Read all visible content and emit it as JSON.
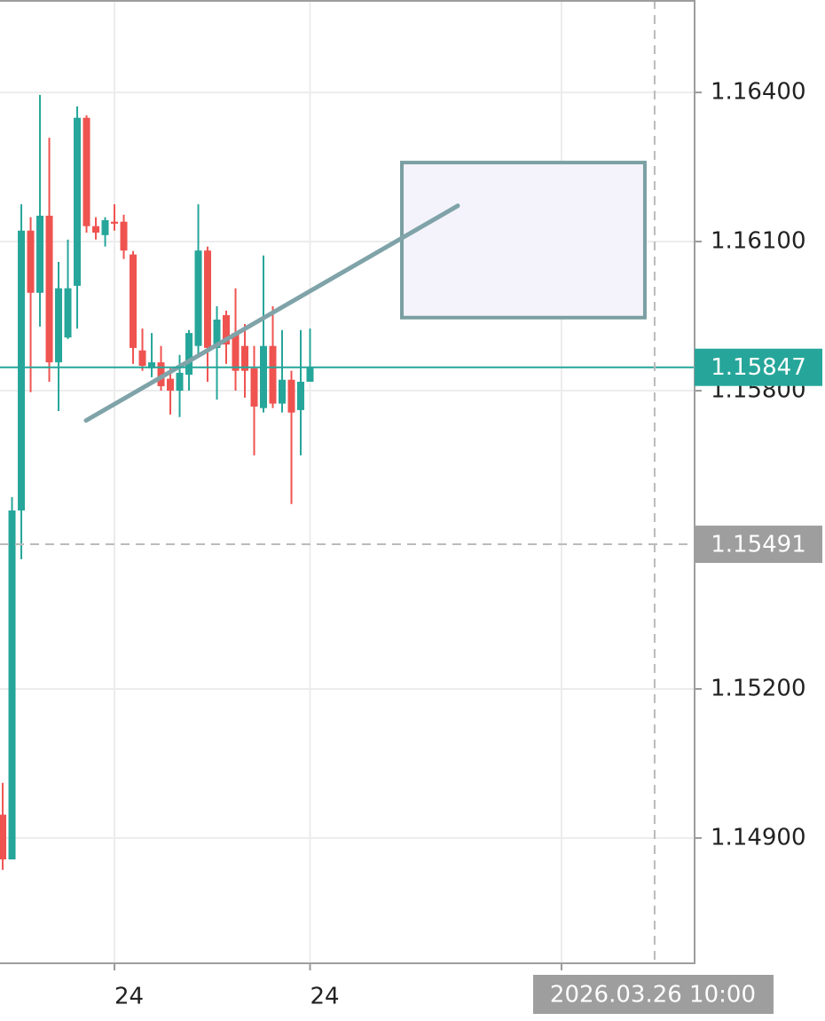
{
  "chart_data": {
    "type": "candlestick",
    "x": [
      0,
      1,
      2,
      3,
      4,
      5,
      6,
      7,
      8,
      9,
      10,
      11,
      12,
      13,
      14,
      15,
      16,
      17,
      18,
      19,
      20,
      21,
      22,
      23,
      24,
      25,
      26,
      27,
      28,
      29,
      30,
      31,
      32,
      33
    ],
    "open": [
      1.14947,
      1.14857,
      1.15559,
      1.16122,
      1.15997,
      1.16152,
      1.15857,
      1.15907,
      1.16011,
      1.16349,
      1.16131,
      1.16113,
      1.1614,
      1.1614,
      1.16074,
      1.15881,
      1.15845,
      1.15857,
      1.15824,
      1.158,
      1.15832,
      1.1589,
      1.16082,
      1.15886,
      1.15952,
      1.15916,
      1.1589,
      1.15845,
      1.15765,
      1.1589,
      1.15774,
      1.15822,
      1.15761,
      1.15818
    ],
    "high": [
      1.15011,
      1.15586,
      1.16175,
      1.16149,
      1.16395,
      1.16309,
      1.16059,
      1.16104,
      1.16372,
      1.16354,
      1.16149,
      1.16149,
      1.16175,
      1.16154,
      1.16081,
      1.15925,
      1.15916,
      1.1589,
      1.15845,
      1.15872,
      1.15922,
      1.16175,
      1.1609,
      1.1597,
      1.15961,
      1.16006,
      1.15934,
      1.1589,
      1.16072,
      1.1597,
      1.15922,
      1.1584,
      1.15922,
      1.15925
    ],
    "low": [
      1.14836,
      1.14857,
      1.15461,
      1.15797,
      1.15929,
      1.15818,
      1.15759,
      1.15904,
      1.15925,
      1.16118,
      1.16104,
      1.1609,
      1.16122,
      1.16065,
      1.15854,
      1.1584,
      1.15827,
      1.158,
      1.15752,
      1.15747,
      1.158,
      1.15872,
      1.15818,
      1.15782,
      1.15854,
      1.158,
      1.15786,
      1.1567,
      1.15756,
      1.15765,
      1.15756,
      1.15572,
      1.1567,
      1.15818
    ],
    "close": [
      1.14857,
      1.15559,
      1.16122,
      1.15997,
      1.16152,
      1.15857,
      1.16006,
      1.16006,
      1.16349,
      1.16131,
      1.16118,
      1.16143,
      1.16136,
      1.16082,
      1.15886,
      1.1585,
      1.15857,
      1.15809,
      1.158,
      1.15836,
      1.15916,
      1.16082,
      1.15886,
      1.15943,
      1.15893,
      1.1584,
      1.1584,
      1.15768,
      1.1589,
      1.15774,
      1.15822,
      1.15756,
      1.15818,
      1.15847
    ],
    "up_color": "#26a69a",
    "down_color": "#ef5350",
    "xlim": [
      -0.29,
      74.29
    ],
    "ylim": [
      1.14648,
      1.16586
    ],
    "xticks": [
      {
        "value": 12,
        "label": "24"
      },
      {
        "value": 33,
        "label": "24"
      },
      {
        "value": 60,
        "label": null
      }
    ],
    "yticks": [
      {
        "value": 1.149,
        "label": "1.14900"
      },
      {
        "value": 1.152,
        "label": "1.15200"
      },
      {
        "value": 1.158,
        "label": "1.15800"
      },
      {
        "value": 1.161,
        "label": "1.16100"
      },
      {
        "value": 1.164,
        "label": "1.16400"
      }
    ],
    "grid": true,
    "current_price": {
      "value": 1.15847,
      "color": "#26a69a"
    },
    "crosshair": {
      "x": 70,
      "y": 1.15491,
      "x_label": "2026.03.26 10:00",
      "color": "#9e9e9e"
    },
    "trendline": {
      "x": [
        8.95,
        48.86
      ],
      "y": [
        1.1574,
        1.16172
      ],
      "color": "#7fa3a8"
    },
    "rectangle": {
      "x": [
        42.86,
        68.95
      ],
      "y": [
        1.16259,
        1.15947
      ],
      "stroke": "#7a9fa3",
      "fill": "#f4f3fb"
    }
  }
}
